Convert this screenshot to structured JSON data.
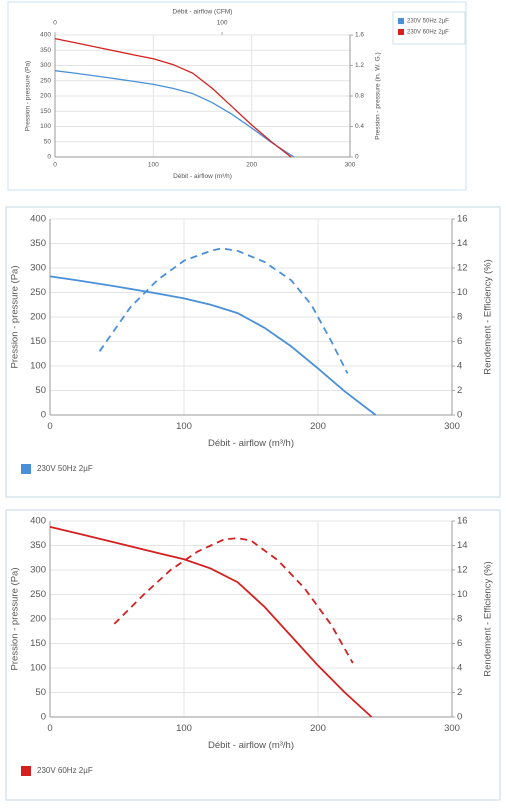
{
  "chart_data": [
    {
      "type": "line",
      "x2label": "Débit - airflow (CFM)",
      "xlabel": "Débit - airflow (m³/h)",
      "ylabel": "Pression - pressure (Pa)",
      "y2label": "Pression - pressure (in. W. G.)",
      "xlim": [
        0,
        300
      ],
      "xticks": [
        0,
        100,
        200,
        300
      ],
      "x2lim": [
        0,
        176.6
      ],
      "x2ticks": [
        0,
        100
      ],
      "ylim": [
        0,
        400
      ],
      "yticks": [
        0,
        50,
        100,
        150,
        200,
        250,
        300,
        350,
        400
      ],
      "y2lim": [
        0,
        1.6
      ],
      "y2ticks": [
        0,
        0.4,
        0.8,
        1.2,
        1.6
      ],
      "grid": true,
      "legend": "top-right",
      "series": [
        {
          "name": "230V 50Hz 2µF",
          "color": "#4a90d9",
          "x": [
            0,
            20,
            50,
            80,
            100,
            120,
            140,
            160,
            180,
            200,
            220,
            243
          ],
          "values": [
            283,
            275,
            262,
            248,
            238,
            225,
            208,
            178,
            140,
            95,
            48,
            0
          ]
        },
        {
          "name": "230V 60Hz 2µF",
          "color": "#d42020",
          "x": [
            0,
            20,
            50,
            80,
            100,
            120,
            140,
            160,
            180,
            200,
            220,
            240
          ],
          "values": [
            388,
            375,
            355,
            335,
            322,
            303,
            275,
            225,
            165,
            105,
            50,
            0
          ]
        }
      ]
    },
    {
      "type": "line",
      "xlabel": "Débit - airflow (m³/h)",
      "ylabel": "Pression - pressure (Pa)",
      "y2label": "Rendement - Efficiency (%)",
      "xlim": [
        0,
        300
      ],
      "xticks": [
        0,
        100,
        200,
        300
      ],
      "ylim": [
        0,
        400
      ],
      "yticks": [
        0,
        50,
        100,
        150,
        200,
        250,
        300,
        350,
        400
      ],
      "y2lim": [
        0,
        16
      ],
      "y2ticks": [
        0,
        2,
        4,
        6,
        8,
        10,
        12,
        14,
        16
      ],
      "grid": true,
      "legend": "bottom-left",
      "series": [
        {
          "name": "230V 50Hz 2µF",
          "color": "#4a90d9",
          "x": [
            0,
            20,
            50,
            80,
            100,
            120,
            140,
            160,
            180,
            200,
            220,
            243
          ],
          "values": [
            283,
            275,
            262,
            248,
            238,
            225,
            208,
            178,
            140,
            95,
            48,
            0
          ]
        },
        {
          "color": "#4a90d9",
          "dashed": true,
          "axis": "y2",
          "x": [
            37,
            60,
            80,
            100,
            120,
            128,
            140,
            160,
            180,
            195,
            210,
            222
          ],
          "values": [
            5.2,
            8.8,
            11,
            12.6,
            13.4,
            13.6,
            13.4,
            12.5,
            11,
            9,
            6,
            3.4
          ]
        }
      ]
    },
    {
      "type": "line",
      "xlabel": "Débit - airflow (m³/h)",
      "ylabel": "Pression - pressure (Pa)",
      "y2label": "Rendement - Efficiency (%)",
      "xlim": [
        0,
        300
      ],
      "xticks": [
        0,
        100,
        200,
        300
      ],
      "ylim": [
        0,
        400
      ],
      "yticks": [
        0,
        50,
        100,
        150,
        200,
        250,
        300,
        350,
        400
      ],
      "y2lim": [
        0,
        16
      ],
      "y2ticks": [
        0,
        2,
        4,
        6,
        8,
        10,
        12,
        14,
        16
      ],
      "grid": true,
      "legend": "bottom-left",
      "series": [
        {
          "name": "230V 60Hz 2µF",
          "color": "#d42020",
          "x": [
            0,
            20,
            50,
            80,
            100,
            120,
            140,
            160,
            180,
            200,
            220,
            240
          ],
          "values": [
            388,
            375,
            355,
            335,
            322,
            303,
            275,
            225,
            165,
            105,
            50,
            0
          ]
        },
        {
          "color": "#d42020",
          "dashed": true,
          "axis": "y2",
          "x": [
            48,
            70,
            90,
            110,
            130,
            140,
            150,
            170,
            190,
            210,
            226
          ],
          "values": [
            7.6,
            10,
            12,
            13.5,
            14.5,
            14.6,
            14.4,
            12.8,
            10.5,
            7.5,
            4.4
          ]
        }
      ]
    }
  ]
}
